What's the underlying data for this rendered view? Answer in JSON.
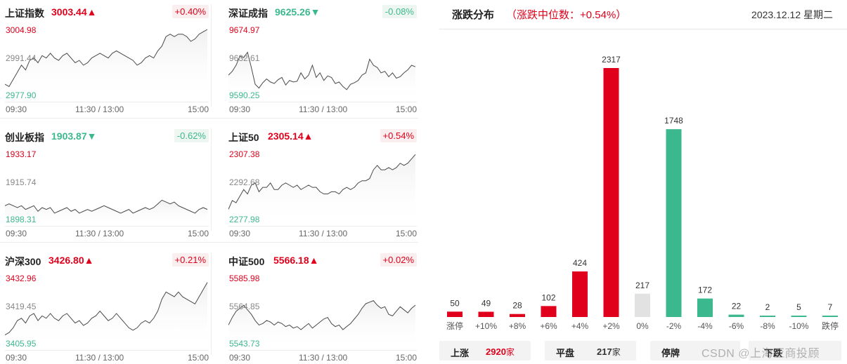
{
  "colors": {
    "up": "#e0001b",
    "down": "#3cb88f",
    "flat": "#e2e2e2",
    "line": "#4a4a4a"
  },
  "time_axis": {
    "open": "09:30",
    "mid": "11:30 / 13:00",
    "close": "15:00"
  },
  "indices": [
    {
      "name": "上证指数",
      "price": "3003.44",
      "arrow": "▲",
      "direction": "up",
      "change": "+0.40%",
      "high": "3004.98",
      "mid": "2991.44",
      "low": "2977.90",
      "hi_val": 3004.98,
      "lo_val": 2977.9,
      "series": [
        2982,
        2981,
        2984,
        2987,
        2990,
        2988,
        2992,
        2993,
        2991,
        2994,
        2993,
        2995,
        2993,
        2992,
        2994,
        2995,
        2993,
        2991,
        2992,
        2990,
        2991,
        2993,
        2994,
        2995,
        2994,
        2993,
        2995,
        2996,
        2995,
        2994,
        2993,
        2992,
        2990,
        2991,
        2993,
        2994,
        2993,
        2996,
        2998,
        3002,
        3003,
        3002,
        3003,
        3003,
        3002,
        3000,
        3001,
        3003,
        3004,
        3005
      ]
    },
    {
      "name": "深证成指",
      "price": "9625.26",
      "arrow": "▼",
      "direction": "down",
      "change": "-0.08%",
      "high": "9674.97",
      "mid": "9632.61",
      "low": "9590.25",
      "hi_val": 9674.97,
      "lo_val": 9590.25,
      "series": [
        9615,
        9620,
        9628,
        9640,
        9638,
        9645,
        9625,
        9603,
        9598,
        9605,
        9610,
        9606,
        9604,
        9609,
        9612,
        9602,
        9608,
        9606,
        9607,
        9618,
        9610,
        9615,
        9628,
        9612,
        9618,
        9608,
        9614,
        9612,
        9604,
        9606,
        9600,
        9596,
        9603,
        9605,
        9608,
        9615,
        9618,
        9636,
        9628,
        9625,
        9618,
        9620,
        9613,
        9618,
        9611,
        9613,
        9618,
        9622,
        9628,
        9626
      ]
    },
    {
      "name": "创业板指",
      "price": "1903.87",
      "arrow": "▼",
      "direction": "down",
      "change": "-0.62%",
      "high": "1933.17",
      "mid": "1915.74",
      "low": "1898.31",
      "hi_val": 1933.17,
      "lo_val": 1898.31,
      "series": [
        1905,
        1906,
        1905,
        1904,
        1905,
        1903,
        1904,
        1905,
        1902,
        1904,
        1903,
        1904,
        1901,
        1902,
        1903,
        1904,
        1902,
        1903,
        1901,
        1902,
        1903,
        1902,
        1903,
        1904,
        1905,
        1904,
        1903,
        1902,
        1901,
        1902,
        1903,
        1901,
        1902,
        1903,
        1904,
        1903,
        1904,
        1906,
        1908,
        1907,
        1906,
        1907,
        1905,
        1904,
        1903,
        1902,
        1901,
        1903,
        1904,
        1903
      ]
    },
    {
      "name": "上证50",
      "price": "2305.14",
      "arrow": "▲",
      "direction": "up",
      "change": "+0.54%",
      "high": "2307.38",
      "mid": "2292.68",
      "low": "2277.98",
      "hi_val": 2307.38,
      "lo_val": 2277.98,
      "series": [
        2282,
        2286,
        2285,
        2288,
        2291,
        2289,
        2293,
        2294,
        2290,
        2292,
        2292,
        2294,
        2291,
        2291,
        2293,
        2294,
        2293,
        2292,
        2293,
        2291,
        2292,
        2293,
        2292,
        2292,
        2290,
        2289,
        2289,
        2290,
        2290,
        2289,
        2291,
        2292,
        2291,
        2292,
        2294,
        2295,
        2295,
        2296,
        2300,
        2302,
        2300,
        2300,
        2301,
        2300,
        2301,
        2303,
        2302,
        2303,
        2305,
        2307
      ]
    },
    {
      "name": "沪深300",
      "price": "3426.80",
      "arrow": "▲",
      "direction": "up",
      "change": "+0.21%",
      "high": "3432.96",
      "mid": "3419.45",
      "low": "3405.95",
      "hi_val": 3432.96,
      "lo_val": 3405.95,
      "series": [
        3409,
        3410,
        3412,
        3415,
        3416,
        3414,
        3417,
        3418,
        3415,
        3417,
        3416,
        3418,
        3416,
        3415,
        3417,
        3418,
        3416,
        3414,
        3415,
        3413,
        3414,
        3416,
        3417,
        3419,
        3417,
        3415,
        3416,
        3418,
        3416,
        3414,
        3412,
        3411,
        3412,
        3414,
        3415,
        3414,
        3416,
        3419,
        3424,
        3427,
        3426,
        3425,
        3427,
        3425,
        3424,
        3423,
        3422,
        3425,
        3428,
        3431
      ]
    },
    {
      "name": "中证500",
      "price": "5566.18",
      "arrow": "▲",
      "direction": "up",
      "change": "+0.02%",
      "high": "5585.98",
      "mid": "5564.85",
      "low": "5543.73",
      "hi_val": 5585.98,
      "lo_val": 5543.73,
      "series": [
        5555,
        5560,
        5564,
        5566,
        5568,
        5565,
        5562,
        5558,
        5555,
        5556,
        5558,
        5557,
        5555,
        5557,
        5556,
        5554,
        5555,
        5553,
        5554,
        5552,
        5554,
        5556,
        5553,
        5555,
        5557,
        5559,
        5560,
        5556,
        5554,
        5555,
        5552,
        5554,
        5556,
        5559,
        5562,
        5566,
        5569,
        5570,
        5571,
        5568,
        5566,
        5567,
        5562,
        5561,
        5564,
        5567,
        5565,
        5563,
        5566,
        5568
      ]
    }
  ],
  "distribution": {
    "title": "涨跌分布",
    "subtitle": "（涨跌中位数：+0.54%）",
    "date": "2023.12.12 星期二",
    "chart_data": {
      "type": "bar",
      "categories": [
        "涨停",
        "+10%",
        "+8%",
        "+6%",
        "+4%",
        "+2%",
        "0%",
        "-2%",
        "-4%",
        "-6%",
        "-8%",
        "-10%",
        "跌停"
      ],
      "values": [
        50,
        49,
        28,
        102,
        424,
        2317,
        217,
        1748,
        172,
        22,
        2,
        5,
        7
      ],
      "value_labels": [
        "50",
        "49",
        "28",
        "102",
        "424",
        "2317",
        "217",
        "1748",
        "172",
        "22",
        "2",
        "5",
        "7"
      ],
      "bar_colors": [
        "up",
        "up",
        "up",
        "up",
        "up",
        "up",
        "flat",
        "down",
        "down",
        "down",
        "down",
        "down",
        "down"
      ],
      "ylim": [
        0,
        2317
      ],
      "grid": false
    },
    "footer": {
      "rise_label": "上涨",
      "rise_value": "2920",
      "rise_unit": "家",
      "flat_label": "平盘",
      "flat_value": "217",
      "flat_unit": "家",
      "halt_label": "停牌",
      "fall_label": "下跌",
      "watermark": "CSDN @上海亚商投顾"
    }
  }
}
